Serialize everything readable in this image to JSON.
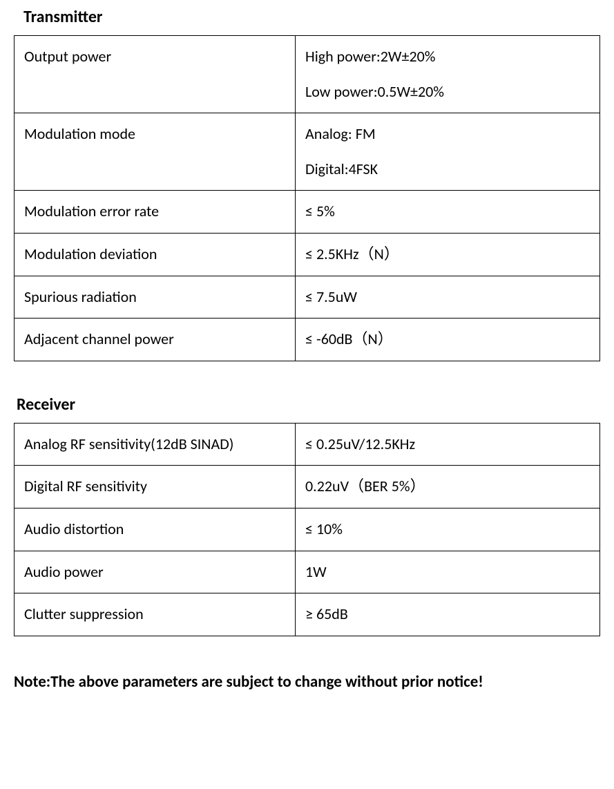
{
  "colors": {
    "text": "#000000",
    "background": "#ffffff",
    "border": "#000000"
  },
  "typography": {
    "base_font": "Calibri",
    "title_fontsize_pt": 18,
    "cell_fontsize_pt": 16,
    "note_fontsize_pt": 17
  },
  "transmitter": {
    "title": "Transmitter",
    "rows": [
      {
        "label": "Output power",
        "lines": [
          "High power:2W±20%",
          "Low power:0.5W±20%"
        ]
      },
      {
        "label": "Modulation mode",
        "lines": [
          "Analog: FM",
          "Digital:4FSK"
        ]
      },
      {
        "label": "Modulation error rate",
        "lines": [
          "≤ 5%"
        ]
      },
      {
        "label": "Modulation deviation",
        "lines": [
          "≤ 2.5KHz（N）"
        ]
      },
      {
        "label": "Spurious radiation",
        "lines": [
          "≤ 7.5uW"
        ]
      },
      {
        "label": "Adjacent channel power",
        "lines": [
          "≤ -60dB（N）"
        ]
      }
    ]
  },
  "receiver": {
    "title": "Receiver",
    "rows": [
      {
        "label": "Analog RF sensitivity(12dB SINAD)",
        "lines": [
          "≤ 0.25uV/12.5KHz"
        ]
      },
      {
        "label": "Digital RF sensitivity",
        "lines": [
          "0.22uV（BER 5%）"
        ]
      },
      {
        "label": "Audio distortion",
        "lines": [
          "≤ 10%"
        ]
      },
      {
        "label": "Audio power",
        "lines": [
          "1W"
        ]
      },
      {
        "label": "Clutter suppression",
        "lines": [
          "≥ 65dB"
        ]
      }
    ]
  },
  "note": "Note:The above parameters are subject to change without prior notice!"
}
